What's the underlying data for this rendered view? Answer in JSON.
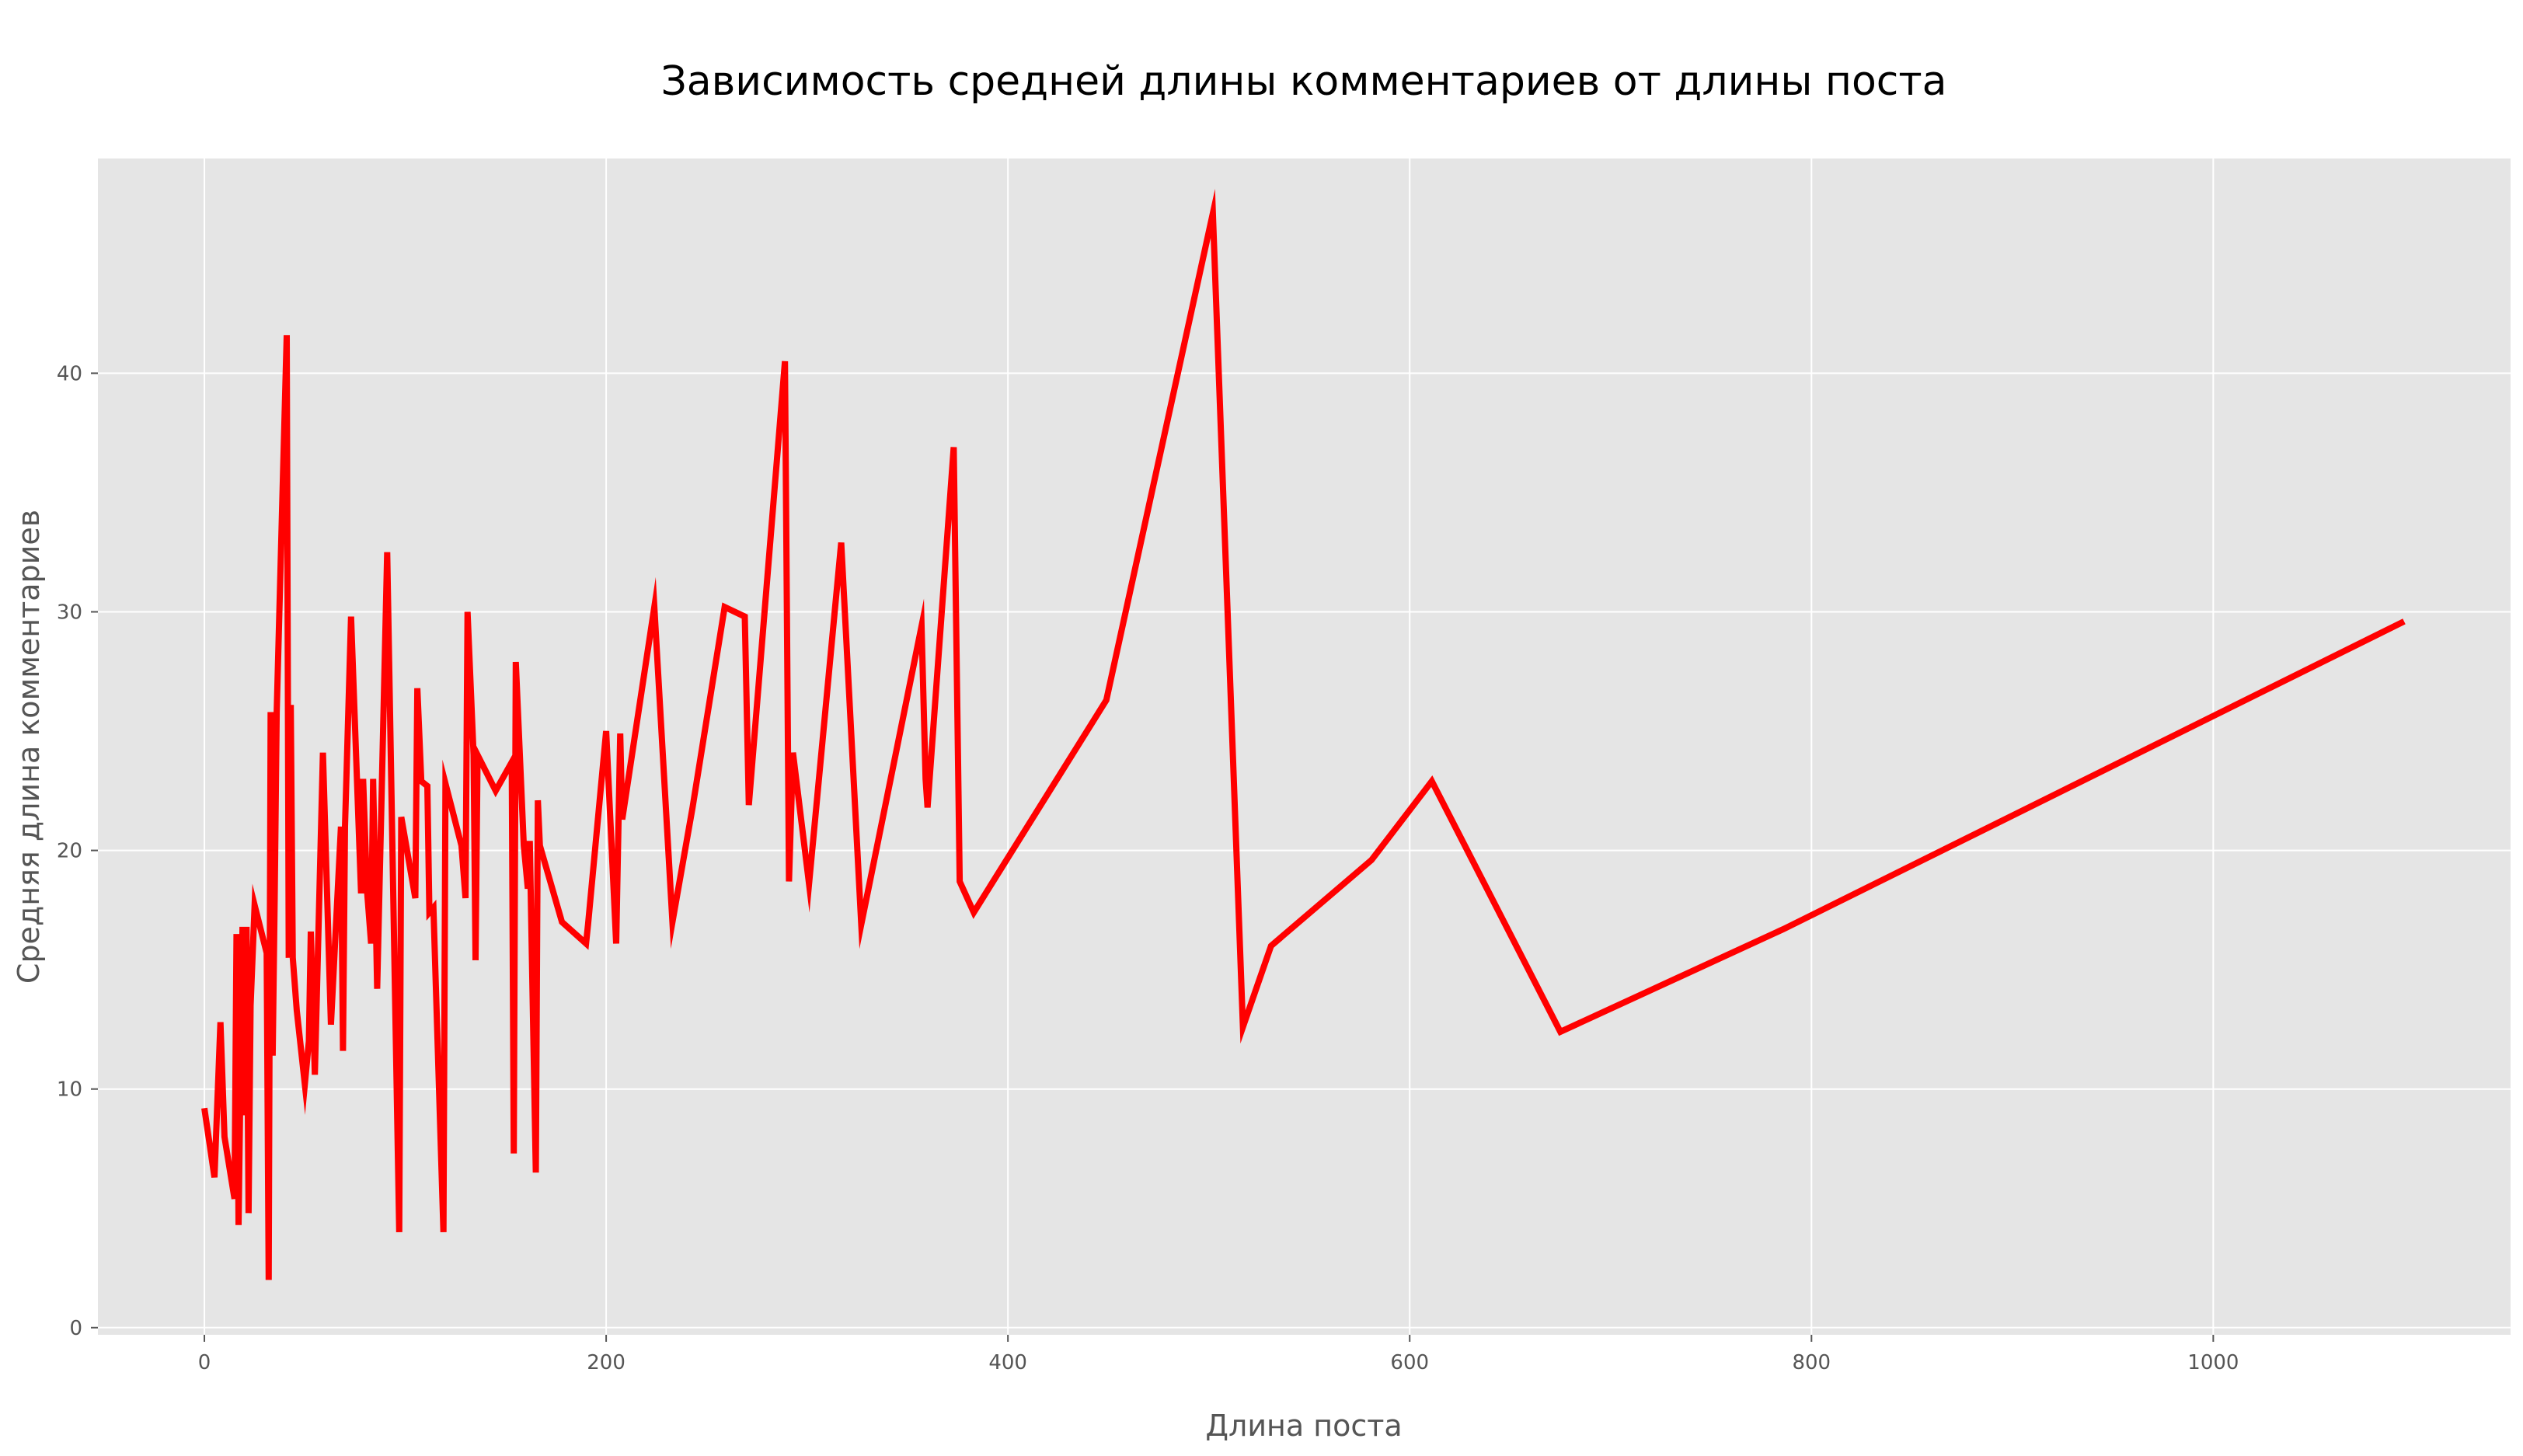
{
  "chart_data": {
    "type": "line",
    "title": "Зависимость средней длины комментариев от длины поста",
    "xlabel": "Длина поста",
    "ylabel": "Средняя длина комментариев",
    "xlim": [
      -53,
      1148
    ],
    "ylim": [
      -0.3,
      49.0
    ],
    "xticks": [
      0,
      200,
      400,
      600,
      800,
      1000
    ],
    "yticks": [
      0,
      10,
      20,
      30,
      40
    ],
    "xtick_labels": [
      "0",
      "200",
      "400",
      "600",
      "800",
      "1000"
    ],
    "ytick_labels": [
      "0",
      "10",
      "20",
      "30",
      "40"
    ],
    "grid": true,
    "style": "ggplot",
    "colors": {
      "line": "#ff0000",
      "plot_bg": "#e5e5e5",
      "grid": "#ffffff",
      "tick": "#555555"
    },
    "series": [
      {
        "x": [
          0,
          5,
          8,
          10,
          15,
          16,
          17,
          19,
          20,
          21,
          22,
          23,
          25,
          31,
          32,
          33,
          34,
          35,
          36,
          41,
          42,
          43,
          44,
          46,
          50,
          52,
          53,
          55,
          59,
          63,
          68,
          69,
          70,
          73,
          78,
          79,
          81,
          83,
          84,
          86,
          91,
          97,
          98,
          105,
          106,
          108,
          111,
          112,
          114,
          119,
          120,
          128,
          130,
          131,
          134,
          135,
          136,
          145,
          153,
          154,
          155,
          159,
          161,
          162,
          165,
          166,
          167,
          178,
          190,
          191,
          200,
          205,
          207,
          208,
          224,
          233,
          243,
          259,
          269,
          271,
          289,
          291,
          293,
          301,
          317,
          327,
          357,
          359,
          360,
          373,
          376,
          383,
          449,
          502,
          517,
          531,
          581,
          611,
          675,
          786,
          1095
        ],
        "y": [
          9.2,
          6.3,
          12.8,
          8.0,
          5.4,
          16.5,
          4.3,
          16.8,
          8.9,
          16.8,
          4.8,
          13.5,
          17.7,
          15.7,
          2.0,
          25.8,
          11.4,
          18.0,
          25.8,
          41.6,
          15.5,
          26.1,
          15.5,
          13.3,
          10.2,
          12.0,
          16.6,
          10.6,
          24.1,
          12.7,
          21.0,
          11.6,
          21.0,
          29.8,
          18.2,
          23.0,
          18.3,
          16.1,
          23.0,
          14.2,
          32.5,
          4.0,
          21.4,
          18.0,
          26.8,
          22.9,
          22.7,
          17.4,
          17.6,
          4.0,
          22.8,
          20.2,
          18.0,
          30.0,
          24.0,
          15.4,
          24.0,
          22.5,
          23.7,
          7.3,
          27.9,
          20.2,
          18.4,
          20.4,
          6.5,
          22.1,
          20.2,
          17.0,
          16.1,
          16.9,
          25.0,
          16.1,
          24.9,
          21.3,
          30.2,
          17.0,
          21.8,
          30.2,
          29.8,
          21.9,
          40.5,
          18.7,
          24.1,
          18.6,
          32.9,
          16.9,
          29.4,
          23.0,
          21.8,
          36.9,
          18.7,
          17.4,
          26.3,
          46.7,
          12.6,
          16.0,
          19.6,
          22.9,
          12.4,
          16.7,
          29.6
        ]
      }
    ]
  }
}
